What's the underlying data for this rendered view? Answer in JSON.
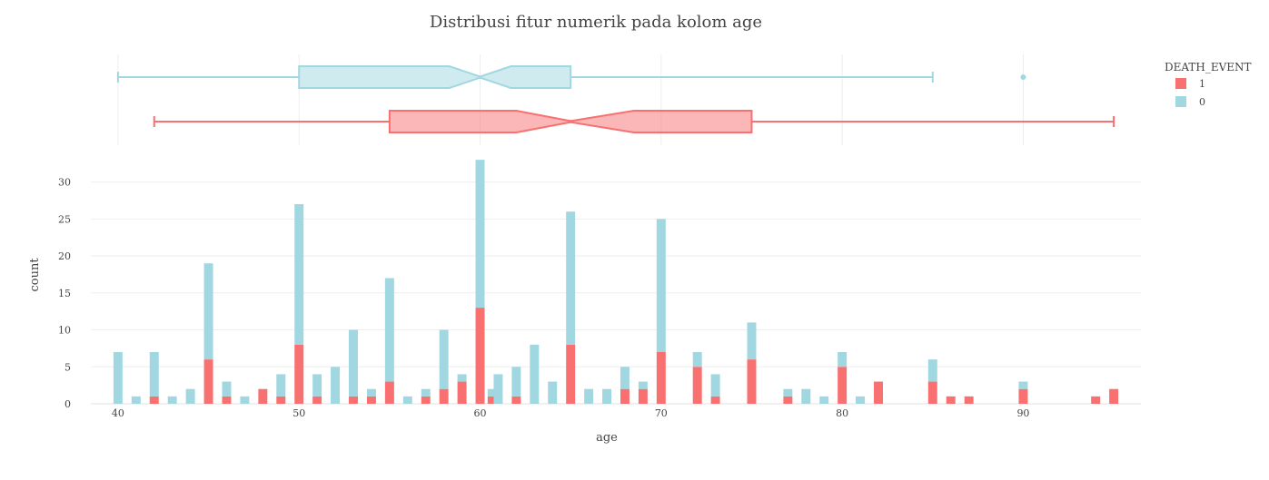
{
  "chart_data": [
    {
      "type": "box",
      "orientation": "horizontal",
      "xlabel": "age",
      "series": [
        {
          "name": "0",
          "color": "#A1D7E0",
          "min": 40,
          "q1": 50,
          "median": 60,
          "q3": 65,
          "max": 85,
          "notch_low": 58.3,
          "notch_high": 61.7,
          "outliers": [
            90
          ]
        },
        {
          "name": "1",
          "color": "#F87070",
          "min": 42,
          "q1": 55,
          "median": 65,
          "q3": 75,
          "max": 95,
          "notch_low": 62,
          "notch_high": 68.5,
          "outliers": []
        }
      ]
    },
    {
      "type": "bar",
      "barmode": "stack",
      "title": "Distribusi fitur numerik pada kolom age",
      "xlabel": "age",
      "ylabel": "count",
      "xlim": [
        38.5,
        96.5
      ],
      "ylim": [
        0,
        34
      ],
      "x_ticks": [
        40,
        50,
        60,
        70,
        80,
        90
      ],
      "y_ticks": [
        0,
        5,
        10,
        15,
        20,
        25,
        30
      ],
      "legend": {
        "title": "DEATH_EVENT",
        "placement": "top-right"
      },
      "series": [
        {
          "name": "1",
          "color": "#F87070",
          "points": [
            {
              "x": 42,
              "y": 1
            },
            {
              "x": 45,
              "y": 6
            },
            {
              "x": 46,
              "y": 1
            },
            {
              "x": 48,
              "y": 2
            },
            {
              "x": 49,
              "y": 1
            },
            {
              "x": 50,
              "y": 8
            },
            {
              "x": 51,
              "y": 1
            },
            {
              "x": 53,
              "y": 1
            },
            {
              "x": 54,
              "y": 1
            },
            {
              "x": 55,
              "y": 3
            },
            {
              "x": 57,
              "y": 1
            },
            {
              "x": 58,
              "y": 2
            },
            {
              "x": 59,
              "y": 3
            },
            {
              "x": 60,
              "y": 13
            },
            {
              "x": 60.667,
              "y": 1
            },
            {
              "x": 62,
              "y": 1
            },
            {
              "x": 65,
              "y": 8
            },
            {
              "x": 68,
              "y": 2
            },
            {
              "x": 69,
              "y": 2
            },
            {
              "x": 70,
              "y": 7
            },
            {
              "x": 72,
              "y": 5
            },
            {
              "x": 73,
              "y": 1
            },
            {
              "x": 75,
              "y": 6
            },
            {
              "x": 77,
              "y": 1
            },
            {
              "x": 80,
              "y": 5
            },
            {
              "x": 82,
              "y": 3
            },
            {
              "x": 85,
              "y": 3
            },
            {
              "x": 86,
              "y": 1
            },
            {
              "x": 87,
              "y": 1
            },
            {
              "x": 90,
              "y": 2
            },
            {
              "x": 94,
              "y": 1
            },
            {
              "x": 95,
              "y": 2
            }
          ]
        },
        {
          "name": "0",
          "color": "#A1D7E0",
          "points": [
            {
              "x": 40,
              "y": 7
            },
            {
              "x": 41,
              "y": 1
            },
            {
              "x": 42,
              "y": 6
            },
            {
              "x": 43,
              "y": 1
            },
            {
              "x": 44,
              "y": 2
            },
            {
              "x": 45,
              "y": 13
            },
            {
              "x": 46,
              "y": 2
            },
            {
              "x": 47,
              "y": 1
            },
            {
              "x": 49,
              "y": 3
            },
            {
              "x": 50,
              "y": 19
            },
            {
              "x": 51,
              "y": 3
            },
            {
              "x": 52,
              "y": 5
            },
            {
              "x": 53,
              "y": 9
            },
            {
              "x": 54,
              "y": 1
            },
            {
              "x": 55,
              "y": 14
            },
            {
              "x": 56,
              "y": 1
            },
            {
              "x": 57,
              "y": 1
            },
            {
              "x": 58,
              "y": 8
            },
            {
              "x": 59,
              "y": 1
            },
            {
              "x": 60,
              "y": 20
            },
            {
              "x": 60.667,
              "y": 1
            },
            {
              "x": 61,
              "y": 4
            },
            {
              "x": 62,
              "y": 4
            },
            {
              "x": 63,
              "y": 8
            },
            {
              "x": 64,
              "y": 3
            },
            {
              "x": 65,
              "y": 18
            },
            {
              "x": 66,
              "y": 2
            },
            {
              "x": 67,
              "y": 2
            },
            {
              "x": 68,
              "y": 3
            },
            {
              "x": 69,
              "y": 1
            },
            {
              "x": 70,
              "y": 18
            },
            {
              "x": 72,
              "y": 2
            },
            {
              "x": 73,
              "y": 3
            },
            {
              "x": 75,
              "y": 5
            },
            {
              "x": 77,
              "y": 1
            },
            {
              "x": 78,
              "y": 2
            },
            {
              "x": 79,
              "y": 1
            },
            {
              "x": 80,
              "y": 2
            },
            {
              "x": 81,
              "y": 1
            },
            {
              "x": 85,
              "y": 3
            },
            {
              "x": 90,
              "y": 1
            }
          ]
        }
      ]
    }
  ]
}
